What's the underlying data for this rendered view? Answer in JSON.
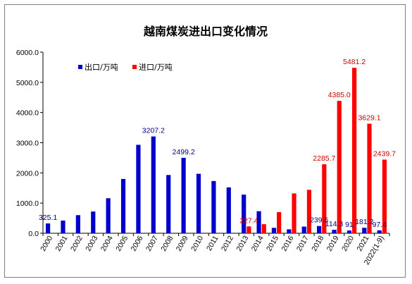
{
  "chart_data": {
    "type": "bar",
    "title": "越南煤炭进出口变化情况",
    "xlabel": "",
    "ylabel": "",
    "ylim": [
      0,
      6000
    ],
    "yticks": [
      "0.0",
      "1000.0",
      "2000.0",
      "3000.0",
      "4000.0",
      "5000.0",
      "6000.0"
    ],
    "grid": false,
    "legend_position": "top-left",
    "categories": [
      "2000",
      "2001",
      "2002",
      "2003",
      "2004",
      "2005",
      "2006",
      "2007",
      "2008",
      "2009",
      "2010",
      "2011",
      "2012",
      "2013",
      "2014",
      "2015",
      "2016",
      "2017",
      "2018",
      "2019",
      "2020",
      "2021",
      "2022(1-9)"
    ],
    "series": [
      {
        "name": "出口/万吨",
        "color": "#0000cc",
        "label_color": "#000080",
        "values": [
          325.1,
          420,
          600,
          720,
          1160,
          1800,
          2930,
          3207.2,
          1930,
          2499.2,
          1970,
          1730,
          1520,
          1280,
          730,
          180,
          130,
          220,
          239.6,
          114.3,
          91,
          181.2,
          97.4
        ],
        "labels": [
          "325.1",
          "",
          "",
          "",
          "",
          "",
          "",
          "3207.2",
          "",
          "2499.2",
          "",
          "",
          "",
          "",
          "",
          "",
          "",
          "",
          "239.6",
          "114.3",
          "91",
          "181.2",
          "97.4"
        ]
      },
      {
        "name": "进口/万吨",
        "color": "#ff0000",
        "label_color": "#cc0000",
        "values": [
          null,
          null,
          null,
          null,
          null,
          null,
          null,
          null,
          null,
          null,
          null,
          null,
          null,
          227.4,
          300,
          700,
          1320,
          1440,
          2285.7,
          4385.0,
          5481.2,
          3629.1,
          2439.7
        ],
        "labels": [
          "",
          "",
          "",
          "",
          "",
          "",
          "",
          "",
          "",
          "",
          "",
          "",
          "",
          "227.4",
          "",
          "",
          "",
          "",
          "2285.7",
          "4385.0",
          "5481.2",
          "3629.1",
          "2439.7"
        ]
      }
    ]
  }
}
